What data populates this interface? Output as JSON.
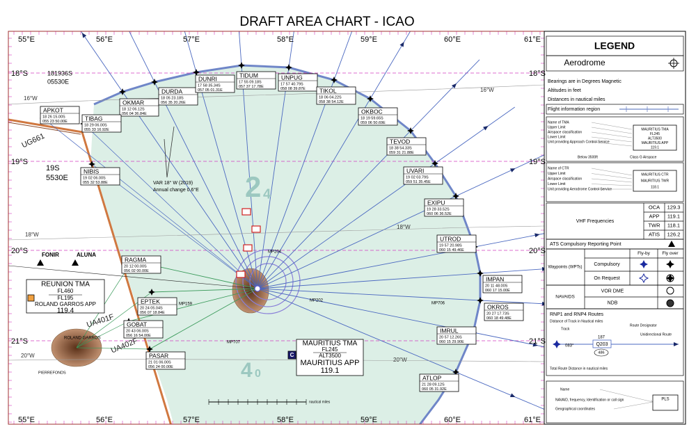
{
  "header": {
    "title": "DRAFT AREA CHART - ICAO"
  },
  "graticule": {
    "longitudes": [
      "55°E",
      "56°E",
      "57°E",
      "58°E",
      "59°E",
      "60°E",
      "61°E"
    ],
    "latitudes": [
      "18°S",
      "19°S",
      "20°S",
      "21°S"
    ]
  },
  "waypoints": [
    {
      "name": "OKMAR",
      "lat": "18 12 06.12S",
      "lon": "056 04 36.84E"
    },
    {
      "name": "DURDA",
      "lat": "18 05 23.18S",
      "lon": "056 35 20.26E"
    },
    {
      "name": "DUNRI",
      "lat": "17 58 35.34S",
      "lon": "057 05 01.31E"
    },
    {
      "name": "TIDUM",
      "lat": "17 55 09.18S",
      "lon": "057 37 17.78E"
    },
    {
      "name": "UNPUG",
      "lat": "17 57 40.79S",
      "lon": "058 08 39.87E"
    },
    {
      "name": "TIKOL",
      "lat": "18 06 04.22S",
      "lon": "058 38 54.12E"
    },
    {
      "name": "OKBOC",
      "lat": "18 19 59.65S",
      "lon": "059 06 50.69E"
    },
    {
      "name": "TEVOD",
      "lat": "18 38 54.33S",
      "lon": "059 31 21.88E"
    },
    {
      "name": "APKOT",
      "lat": "18 26 15.00S",
      "lon": "055 23 50.00E"
    },
    {
      "name": "TIBAG",
      "lat": "18 29 06.00S",
      "lon": "055 33 16.92E"
    },
    {
      "name": "NIBIS",
      "lat": "19 02 06.00S",
      "lon": "055 32 53.88E"
    },
    {
      "name": "UVARI",
      "lat": "19 02 03.79S",
      "lon": "059 51 35.45E"
    },
    {
      "name": "EXIPU",
      "lat": "19 28 33.52S",
      "lon": "060 06 36.52E"
    },
    {
      "name": "UTROD",
      "lat": "19 57 20.98S",
      "lon": "060 15 49.46E"
    },
    {
      "name": "IMPAN",
      "lat": "20 11 48.00S",
      "lon": "060 17 15.00E"
    },
    {
      "name": "OKROS",
      "lat": "20 27 17.73S",
      "lon": "060 18 49.48E"
    },
    {
      "name": "IMRUL",
      "lat": "20 57 12.26S",
      "lon": "060 15 29.90E"
    },
    {
      "name": "ATLOP",
      "lat": "21 28 09.12S",
      "lon": "060 05 31.92E"
    },
    {
      "name": "RAGMA",
      "lat": "20 12 00.00S",
      "lon": "056 02 00.00E"
    },
    {
      "name": "EPTEK",
      "lat": "20 24 05.04S",
      "lon": "056 07 18.84E"
    },
    {
      "name": "GOBAT",
      "lat": "20 43 06.00S",
      "lon": "056 16 54.00E"
    },
    {
      "name": "PASAR",
      "lat": "21 01 06.00S",
      "lon": "056 24 00.00E"
    }
  ],
  "reporting_points": [
    "FONIR",
    "ALUNA"
  ],
  "fir_points": [
    {
      "lat": "181936S",
      "lon": "05530E"
    },
    {
      "lat": "19S",
      "lon": "5530E"
    }
  ],
  "routes": [
    "UG661",
    "UA401F",
    "UA402F",
    "MP204",
    "MP202",
    "MP159",
    "MP707",
    "MP706"
  ],
  "variation": {
    "note": "VAR 18° W (2019)",
    "annual": "Annual change 0.6°E",
    "isogonics": [
      "16°W",
      "16°W",
      "18°W",
      "18°W",
      "20°W",
      "20°W"
    ]
  },
  "sector_altitudes": [
    {
      "big": "2",
      "small": "4"
    },
    {
      "big": "4",
      "small": "0"
    }
  ],
  "reunion_tma": {
    "name": "REUNION TMA",
    "upper": "FL460",
    "lower": "FL195",
    "unit": "ROLAND GARROS APP",
    "freq": "119.4"
  },
  "mauritius_tma": {
    "name": "MAURITIUS TMA",
    "upper": "FL245",
    "lower": "ALT3500",
    "unit": "MAURITIUS APP",
    "freq": "119.1",
    "class": "C"
  },
  "places": [
    "ROLAND GARROS",
    "PIERREFONDS"
  ],
  "scale_unit": "nautical miles",
  "legend": {
    "title": "LEGEND",
    "aerodrome": "Aerodrome",
    "notes": [
      "Bearings are in Degrees Magnetic",
      "Altitudes in feet",
      "Distances in nautical miles"
    ],
    "fir": "Flight information region",
    "tma": {
      "labels": [
        "Name of TMA",
        "Upper Limit",
        "Airspace classification",
        "Lower Limit",
        "Unit providing Approach Control Service"
      ],
      "sample": [
        "MAURITIUS TMA",
        "FL245",
        "ALT3500",
        "MAURITIUS APP",
        "119.1"
      ],
      "below": "Below 3500ft",
      "class_g": "Class G Airspace"
    },
    "ctr": {
      "labels": [
        "Name of CTR",
        "Upper Limit",
        "Airspace classification",
        "Lower Limit",
        "Unit providing Aerodrome Control Service"
      ],
      "sample": [
        "MAURITIUS CTR",
        "MAURITIUS TWR",
        "118.1"
      ]
    },
    "vhf": {
      "title": "VHF Frequencies",
      "rows": [
        [
          "OCA",
          "129.3"
        ],
        [
          "APP",
          "119.1"
        ],
        [
          "TWR",
          "118.1"
        ],
        [
          "ATIS",
          "126.2"
        ]
      ]
    },
    "reporting_point": "ATS Compulsory Reporting Point",
    "waypoints": {
      "title": "Waypoints (WPTs)",
      "columns": [
        "Fly-by",
        "Fly over"
      ],
      "rows": [
        "Compulsory",
        "On Request"
      ]
    },
    "navaids": {
      "title": "NAVAIDS",
      "rows": [
        "VOR DME",
        "NDB"
      ]
    },
    "rnp": {
      "title": "RNP1 and RNP4 Routes",
      "distance": "Distance of Track in Nautical miles",
      "track": "Track",
      "designator": "Route Designator",
      "unidirectional": "Unidirectional Route",
      "bearing": "083°",
      "leg": "187",
      "route": "Q203",
      "total_value": "486",
      "total": "Total Route Distance in nautical miles"
    },
    "navaid_box": {
      "name": "Name",
      "ident": "NAVAID, frequency, Identification or call sign",
      "coords": "Geographical coordinates",
      "sample": "PLS"
    }
  }
}
